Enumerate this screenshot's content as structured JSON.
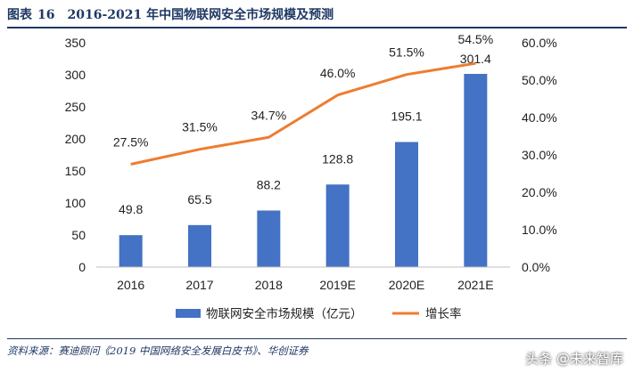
{
  "figure": {
    "label": "图表",
    "number": "16",
    "title": "2016-2021 年中国物联网安全市场规模及预测"
  },
  "source_note": "资料来源：赛迪顾问《2019 中国网络安全发展白皮书》、华创证券",
  "watermark": "头条 @未来智库",
  "chart_data": {
    "type": "bar",
    "categories": [
      "2016",
      "2017",
      "2018",
      "2019E",
      "2020E",
      "2021E"
    ],
    "series": [
      {
        "name": "物联网安全市场规模（亿元）",
        "type": "bar",
        "axis": "left",
        "values": [
          49.8,
          65.5,
          88.2,
          128.8,
          195.1,
          301.4
        ],
        "labels": [
          "49.8",
          "65.5",
          "88.2",
          "128.8",
          "195.1",
          "301.4"
        ],
        "color": "#4472c4"
      },
      {
        "name": "增长率",
        "type": "line",
        "axis": "right",
        "values": [
          27.5,
          31.5,
          34.7,
          46.0,
          51.5,
          54.5
        ],
        "labels": [
          "27.5%",
          "31.5%",
          "34.7%",
          "46.0%",
          "51.5%",
          "54.5%"
        ],
        "color": "#ed7d31"
      }
    ],
    "y_left": {
      "lim": [
        0,
        350
      ],
      "ticks": [
        0,
        50,
        100,
        150,
        200,
        250,
        300,
        350
      ],
      "tick_labels": [
        "0",
        "50",
        "100",
        "150",
        "200",
        "250",
        "300",
        "350"
      ]
    },
    "y_right": {
      "lim": [
        0,
        60
      ],
      "ticks": [
        0,
        10,
        20,
        30,
        40,
        50,
        60
      ],
      "tick_labels": [
        "0.0%",
        "10.0%",
        "20.0%",
        "30.0%",
        "40.0%",
        "50.0%",
        "60.0%"
      ]
    },
    "grid": false,
    "legend_position": "bottom"
  }
}
